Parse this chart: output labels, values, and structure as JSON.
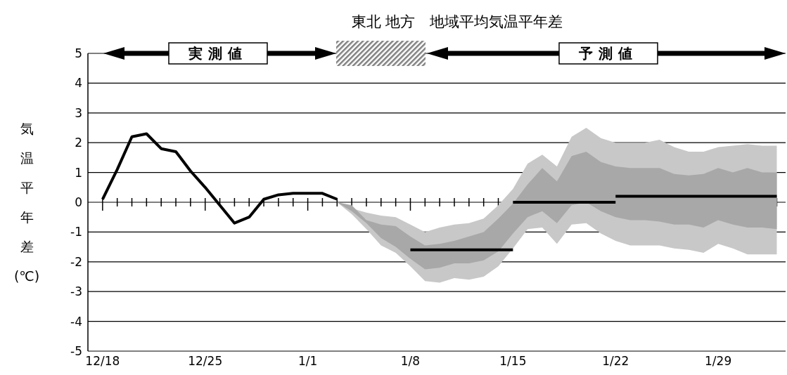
{
  "chart_data": {
    "type": "line",
    "title": "東北 地方　地域平均気温平年差",
    "ylabel": "気温平年差(℃)",
    "categories": [
      null,
      "12/18",
      null,
      null,
      null,
      null,
      null,
      null,
      "12/25",
      null,
      null,
      null,
      null,
      null,
      null,
      "1/1",
      null,
      null,
      null,
      null,
      null,
      null,
      "1/8",
      null,
      null,
      null,
      null,
      null,
      null,
      "1/15",
      null,
      null,
      null,
      null,
      null,
      null,
      "1/22",
      null,
      null,
      null,
      null,
      null,
      null,
      "1/29",
      null,
      null,
      null,
      null
    ],
    "ylim": [
      -5,
      5
    ],
    "yticks": [
      -5,
      -4,
      -3,
      -2,
      -1,
      0,
      1,
      2,
      3,
      4,
      5
    ],
    "grid": "y",
    "annotations": [
      "実測値",
      "予測値"
    ],
    "series": [
      {
        "type": "area",
        "color": "#c8c8c8",
        "values": [
          null,
          null,
          null,
          null,
          null,
          null,
          null,
          null,
          null,
          null,
          null,
          null,
          null,
          null,
          null,
          null,
          null,
          null,
          null,
          null,
          null,
          null,
          null,
          null,
          null,
          null,
          null,
          null,
          null,
          null,
          null,
          null,
          null,
          null,
          null,
          null,
          null,
          null,
          null,
          null,
          null,
          null,
          null,
          null,
          null,
          null,
          null,
          null
        ],
        "upper": [
          null,
          null,
          null,
          null,
          null,
          null,
          null,
          null,
          null,
          null,
          null,
          null,
          null,
          null,
          null,
          null,
          null,
          0.0,
          -0.2,
          -0.35,
          -0.45,
          -0.5,
          -0.75,
          -1.0,
          -0.85,
          -0.75,
          -0.7,
          -0.55,
          -0.1,
          0.45,
          1.3,
          1.6,
          1.2,
          2.2,
          2.5,
          2.15,
          2.0,
          2.0,
          2.0,
          2.1,
          1.85,
          1.7,
          1.7,
          1.85,
          1.9,
          1.95,
          1.9,
          1.9
        ],
        "lower": [
          null,
          null,
          null,
          null,
          null,
          null,
          null,
          null,
          null,
          null,
          null,
          null,
          null,
          null,
          null,
          null,
          null,
          0.0,
          -0.4,
          -0.9,
          -1.45,
          -1.7,
          -2.15,
          -2.65,
          -2.7,
          -2.55,
          -2.6,
          -2.5,
          -2.15,
          -1.55,
          -0.9,
          -0.85,
          -1.4,
          -0.75,
          -0.7,
          -1.05,
          -1.3,
          -1.45,
          -1.45,
          -1.45,
          -1.55,
          -1.6,
          -1.7,
          -1.4,
          -1.55,
          -1.75,
          -1.75,
          -1.75
        ]
      },
      {
        "type": "area",
        "color": "#a8a8a8",
        "values": [
          null,
          null,
          null,
          null,
          null,
          null,
          null,
          null,
          null,
          null,
          null,
          null,
          null,
          null,
          null,
          null,
          null,
          null,
          null,
          null,
          null,
          null,
          null,
          null,
          null,
          null,
          null,
          null,
          null,
          null,
          null,
          null,
          null,
          null,
          null,
          null,
          null,
          null,
          null,
          null,
          null,
          null,
          null,
          null,
          null,
          null,
          null,
          null
        ],
        "upper": [
          null,
          null,
          null,
          null,
          null,
          null,
          null,
          null,
          null,
          null,
          null,
          null,
          null,
          null,
          null,
          null,
          null,
          0.0,
          -0.1,
          -0.6,
          -0.75,
          -0.8,
          -1.15,
          -1.45,
          -1.4,
          -1.3,
          -1.15,
          -1.0,
          -0.55,
          -0.05,
          0.6,
          1.15,
          0.7,
          1.55,
          1.7,
          1.35,
          1.2,
          1.15,
          1.15,
          1.15,
          0.95,
          0.9,
          0.95,
          1.15,
          1.0,
          1.15,
          1.0,
          1.0
        ],
        "lower": [
          null,
          null,
          null,
          null,
          null,
          null,
          null,
          null,
          null,
          null,
          null,
          null,
          null,
          null,
          null,
          null,
          null,
          0.0,
          -0.3,
          -0.7,
          -1.2,
          -1.5,
          -1.9,
          -2.25,
          -2.2,
          -2.05,
          -2.05,
          -1.95,
          -1.65,
          -1.05,
          -0.5,
          -0.3,
          -0.7,
          -0.1,
          0.0,
          -0.3,
          -0.5,
          -0.6,
          -0.6,
          -0.65,
          -0.75,
          -0.75,
          -0.85,
          -0.6,
          -0.75,
          -0.85,
          -0.85,
          -0.9
        ]
      },
      {
        "color": "#000000",
        "values": [
          null,
          0.1,
          1.1,
          2.2,
          2.3,
          1.8,
          1.7,
          1.05,
          0.5,
          -0.1,
          -0.7,
          -0.5,
          0.1,
          0.25,
          0.3,
          0.3,
          0.3,
          0.1,
          null,
          null,
          null,
          null,
          null,
          null,
          null,
          null,
          null,
          null,
          null,
          null,
          null,
          null,
          null,
          null,
          null,
          null,
          null,
          null,
          null,
          null,
          null,
          null,
          null,
          null,
          null,
          null,
          null,
          null
        ]
      },
      {
        "color": "#000000",
        "values": [
          null,
          null,
          null,
          null,
          null,
          null,
          null,
          null,
          null,
          null,
          null,
          null,
          null,
          null,
          null,
          null,
          null,
          null,
          null,
          null,
          null,
          null,
          -1.6,
          -1.6,
          -1.6,
          -1.6,
          -1.6,
          -1.6,
          -1.6,
          -1.6,
          null,
          null,
          null,
          null,
          null,
          null,
          null,
          null,
          null,
          null,
          null,
          null,
          null,
          null,
          null,
          null,
          null,
          null
        ]
      },
      {
        "color": "#000000",
        "values": [
          null,
          null,
          null,
          null,
          null,
          null,
          null,
          null,
          null,
          null,
          null,
          null,
          null,
          null,
          null,
          null,
          null,
          null,
          null,
          null,
          null,
          null,
          null,
          null,
          null,
          null,
          null,
          null,
          null,
          0.0,
          0.0,
          0.0,
          0.0,
          0.0,
          0.0,
          0.0,
          0.0,
          null,
          null,
          null,
          null,
          null,
          null,
          null,
          null,
          null,
          null,
          null
        ]
      },
      {
        "color": "#000000",
        "values": [
          null,
          null,
          null,
          null,
          null,
          null,
          null,
          null,
          null,
          null,
          null,
          null,
          null,
          null,
          null,
          null,
          null,
          null,
          null,
          null,
          null,
          null,
          null,
          null,
          null,
          null,
          null,
          null,
          null,
          null,
          null,
          null,
          null,
          null,
          null,
          null,
          0.2,
          0.2,
          0.2,
          0.2,
          0.2,
          0.2,
          0.2,
          0.2,
          0.2,
          0.2,
          0.2,
          0.2
        ]
      }
    ]
  }
}
